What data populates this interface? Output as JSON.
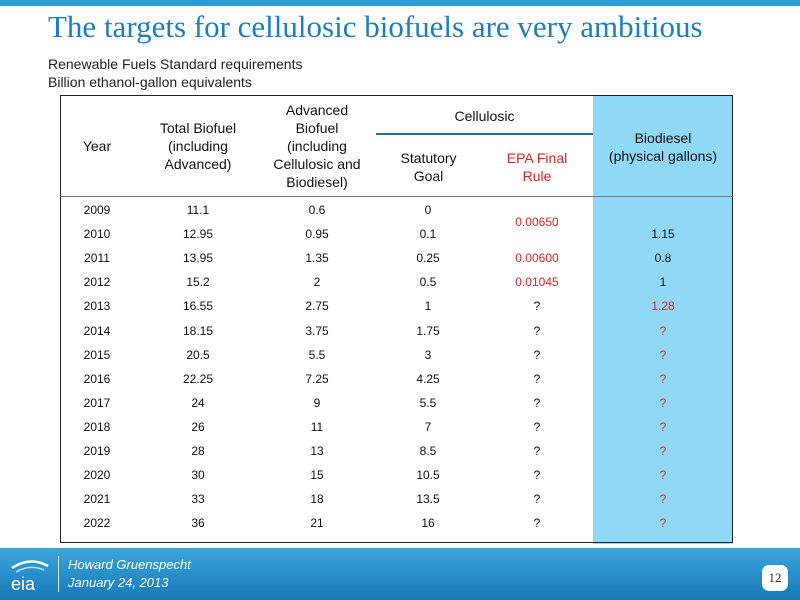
{
  "title": "The targets for cellulosic biofuels are very ambitious",
  "subtitle1": "Renewable Fuels Standard requirements",
  "subtitle2": "Billion ethanol-gallon equivalents",
  "headers": {
    "year": "Year",
    "total_l1": "Total Biofuel",
    "total_l2": "(including",
    "total_l3": "Advanced)",
    "adv_l1": "Advanced",
    "adv_l2": "Biofuel",
    "adv_l3": "(including",
    "adv_l4": "Cellulosic and",
    "adv_l5": "Biodiesel)",
    "cellulosic": "Cellulosic",
    "stat_l1": "Statutory",
    "stat_l2": "Goal",
    "epa_l1": "EPA Final",
    "epa_l2": "Rule",
    "bio_l1": "Biodiesel",
    "bio_l2": "(physical gallons)"
  },
  "rows": [
    {
      "year": "2009",
      "total": "11.1",
      "advanced": "0.6",
      "statutory": "0",
      "epa": "",
      "biodiesel": ""
    },
    {
      "year": "2010",
      "total": "12.95",
      "advanced": "0.95",
      "statutory": "0.1",
      "epa": "",
      "biodiesel": "1.15"
    },
    {
      "year": "2011",
      "total": "13.95",
      "advanced": "1.35",
      "statutory": "0.25",
      "epa": "0.00600",
      "biodiesel": "0.8"
    },
    {
      "year": "2012",
      "total": "15.2",
      "advanced": "2",
      "statutory": "0.5",
      "epa": "0.01045",
      "biodiesel": "1"
    },
    {
      "year": "2013",
      "total": "16.55",
      "advanced": "2.75",
      "statutory": "1",
      "epa": "?",
      "biodiesel": "1.28"
    },
    {
      "year": "2014",
      "total": "18.15",
      "advanced": "3.75",
      "statutory": "1.75",
      "epa": "?",
      "biodiesel": "?"
    },
    {
      "year": "2015",
      "total": "20.5",
      "advanced": "5.5",
      "statutory": "3",
      "epa": "?",
      "biodiesel": "?"
    },
    {
      "year": "2016",
      "total": "22.25",
      "advanced": "7.25",
      "statutory": "4.25",
      "epa": "?",
      "biodiesel": "?"
    },
    {
      "year": "2017",
      "total": "24",
      "advanced": "9",
      "statutory": "5.5",
      "epa": "?",
      "biodiesel": "?"
    },
    {
      "year": "2018",
      "total": "26",
      "advanced": "11",
      "statutory": "7",
      "epa": "?",
      "biodiesel": "?"
    },
    {
      "year": "2019",
      "total": "28",
      "advanced": "13",
      "statutory": "8.5",
      "epa": "?",
      "biodiesel": "?"
    },
    {
      "year": "2020",
      "total": "30",
      "advanced": "15",
      "statutory": "10.5",
      "epa": "?",
      "biodiesel": "?"
    },
    {
      "year": "2021",
      "total": "33",
      "advanced": "18",
      "statutory": "13.5",
      "epa": "?",
      "biodiesel": "?"
    },
    {
      "year": "2022",
      "total": "36",
      "advanced": "21",
      "statutory": "16",
      "epa": "?",
      "biodiesel": "?"
    }
  ],
  "epa_merged_2009_2010": "0.00650",
  "footer": {
    "logo_text": "eia",
    "name": "Howard Gruenspecht",
    "date": "January 24, 2013",
    "page": "12"
  },
  "colors": {
    "title": "#1a7fc1",
    "highlight_red": "#e02020",
    "biodiesel_column": "#8fd9f7",
    "footer": "#1f86c4"
  }
}
